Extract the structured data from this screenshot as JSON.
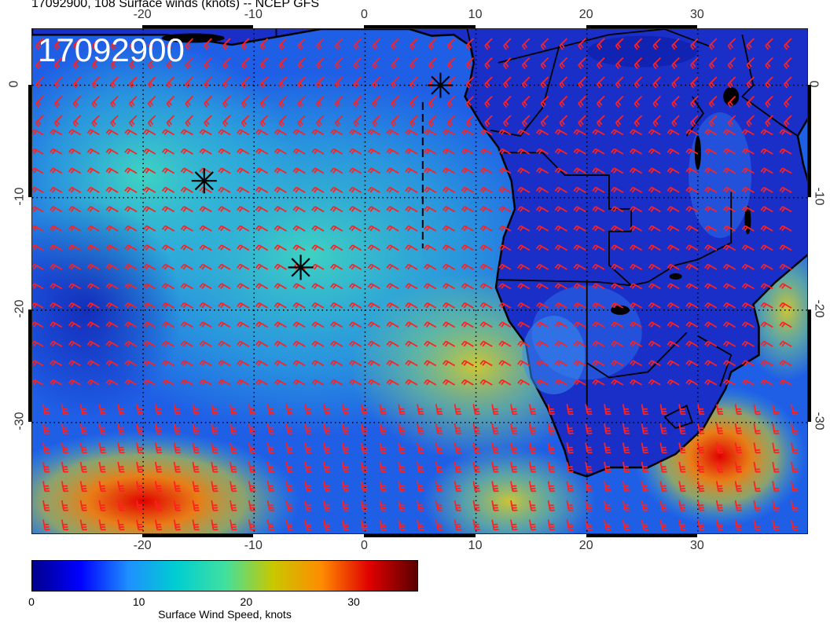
{
  "title": "17092900, 108 Surface winds (knots) -- NCEP GFS",
  "overlay_date": "17092900",
  "map": {
    "lon_range": [
      -30,
      40
    ],
    "lat_range": [
      -40,
      5
    ],
    "lon_ticks": [
      "-20",
      "-10",
      "0",
      "10",
      "20",
      "30"
    ],
    "lat_ticks": [
      "0",
      "-10",
      "-20",
      "-30"
    ],
    "gridlines": "dotted",
    "barb_color": "#ff2020",
    "coast_color": "#000000"
  },
  "storm_markers": [
    {
      "lon": -14.5,
      "lat": -8.5
    },
    {
      "lon": -5.8,
      "lat": -16.2
    },
    {
      "lon": 6.8,
      "lat": 0.0
    }
  ],
  "colorbar": {
    "label": "Surface Wind Speed, knots",
    "ticks": [
      "0",
      "10",
      "20",
      "30"
    ],
    "range": [
      0,
      36
    ],
    "colors": [
      "#00008b",
      "#0000ff",
      "#1e90ff",
      "#00ced1",
      "#40e0a0",
      "#c8c800",
      "#ff8c00",
      "#e00000",
      "#5a0000"
    ]
  },
  "chart_data": {
    "type": "heatmap",
    "title": "17092900, 108 Surface winds (knots) -- NCEP GFS",
    "variable": "Surface Wind Speed, knots",
    "xlim": [
      -30,
      40
    ],
    "ylim": [
      -40,
      5
    ],
    "x_ticks": [
      -20,
      -10,
      0,
      10,
      20,
      30
    ],
    "y_ticks": [
      0,
      -10,
      -20,
      -30
    ],
    "value_range": [
      0,
      36
    ]
  }
}
